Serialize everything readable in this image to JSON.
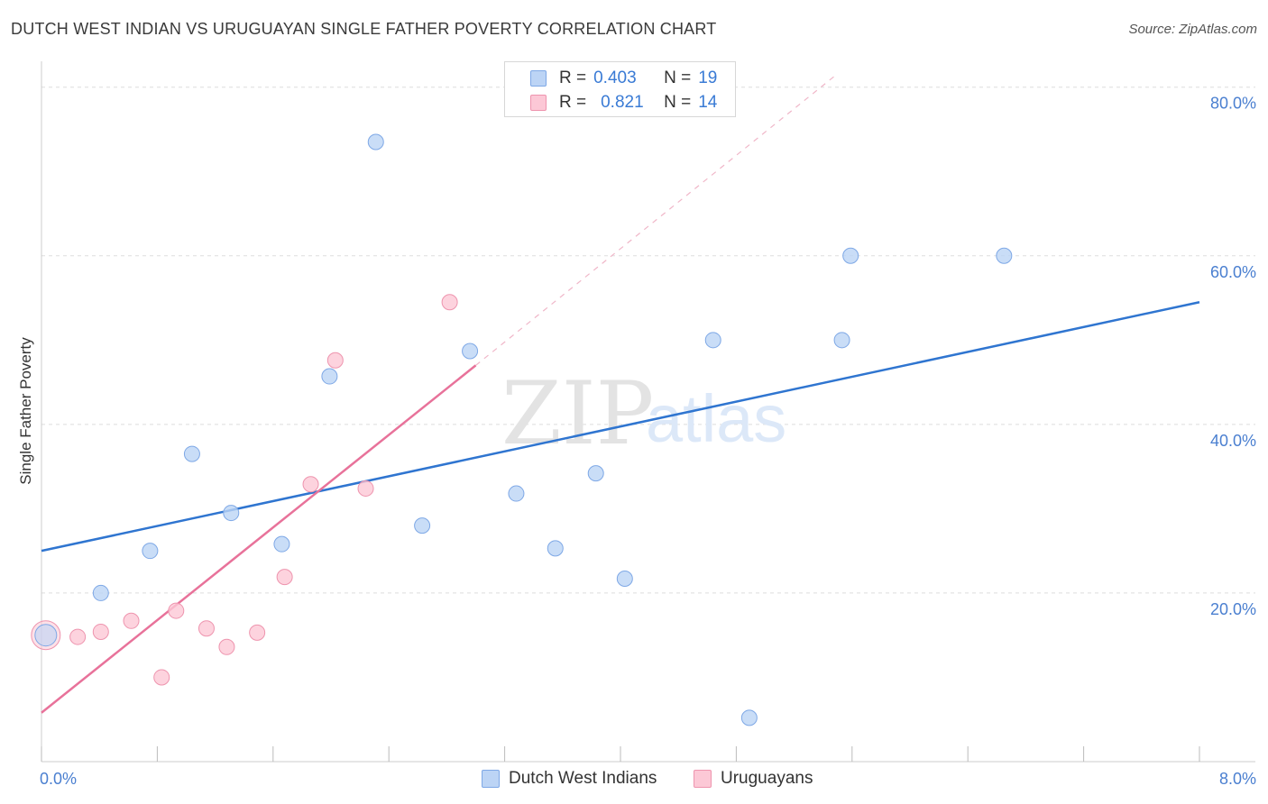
{
  "title": "DUTCH WEST INDIAN VS URUGUAYAN SINGLE FATHER POVERTY CORRELATION CHART",
  "source": "Source: ZipAtlas.com",
  "watermark": {
    "zip": "ZIP",
    "atlas": "atlas"
  },
  "legend": {
    "r_label": "R =",
    "n_label": "N =",
    "rows": [
      {
        "r": "0.403",
        "n": "19"
      },
      {
        "r": "0.821",
        "n": "14"
      }
    ]
  },
  "colors": {
    "blue_fill": "#bcd4f5",
    "blue_stroke": "#7ea8e6",
    "blue_line": "#2f75d0",
    "pink_fill": "#fcc8d6",
    "pink_stroke": "#ee94ae",
    "pink_line": "#e8729a",
    "grid": "#dddddd",
    "axis_text": "#4a7fd0"
  },
  "chart_data": {
    "type": "scatter",
    "title": "DUTCH WEST INDIAN VS URUGUAYAN SINGLE FATHER POVERTY CORRELATION CHART",
    "xlabel": "",
    "ylabel": "Single Father Poverty",
    "xlim": [
      0,
      8
    ],
    "ylim": [
      0,
      82
    ],
    "x_tick_labels": [
      "0.0%",
      "8.0%"
    ],
    "y_ticks": [
      20,
      40,
      60,
      80
    ],
    "y_tick_labels": [
      "20.0%",
      "40.0%",
      "60.0%",
      "80.0%"
    ],
    "series": [
      {
        "name": "Dutch West Indians",
        "color": "#7ea8e6",
        "r": 0.403,
        "n": 19,
        "points": [
          {
            "x": 0.03,
            "y": 15.0,
            "big": true
          },
          {
            "x": 0.41,
            "y": 20.0
          },
          {
            "x": 0.75,
            "y": 25.0
          },
          {
            "x": 1.04,
            "y": 36.5
          },
          {
            "x": 1.31,
            "y": 29.5
          },
          {
            "x": 1.66,
            "y": 25.8
          },
          {
            "x": 1.99,
            "y": 45.7
          },
          {
            "x": 2.31,
            "y": 73.5
          },
          {
            "x": 2.63,
            "y": 28.0
          },
          {
            "x": 2.96,
            "y": 48.7
          },
          {
            "x": 3.28,
            "y": 31.8
          },
          {
            "x": 3.55,
            "y": 25.3
          },
          {
            "x": 3.83,
            "y": 34.2
          },
          {
            "x": 4.03,
            "y": 21.7
          },
          {
            "x": 4.64,
            "y": 50.0
          },
          {
            "x": 4.89,
            "y": 5.2
          },
          {
            "x": 5.53,
            "y": 50.0
          },
          {
            "x": 5.59,
            "y": 60.0
          },
          {
            "x": 6.65,
            "y": 60.0
          }
        ],
        "trend": {
          "x0": 0.0,
          "y0": 25.0,
          "x1": 8.0,
          "y1": 54.5
        }
      },
      {
        "name": "Uruguayans",
        "color": "#ee94ae",
        "r": 0.821,
        "n": 14,
        "points": [
          {
            "x": 0.03,
            "y": 15.0,
            "big": true
          },
          {
            "x": 0.25,
            "y": 14.8
          },
          {
            "x": 0.41,
            "y": 15.4
          },
          {
            "x": 0.62,
            "y": 16.7
          },
          {
            "x": 0.83,
            "y": 10.0
          },
          {
            "x": 0.93,
            "y": 17.9
          },
          {
            "x": 1.14,
            "y": 15.8
          },
          {
            "x": 1.28,
            "y": 13.6
          },
          {
            "x": 1.49,
            "y": 15.3
          },
          {
            "x": 1.68,
            "y": 21.9
          },
          {
            "x": 1.86,
            "y": 32.9
          },
          {
            "x": 2.03,
            "y": 47.6
          },
          {
            "x": 2.24,
            "y": 32.4
          },
          {
            "x": 2.82,
            "y": 54.5
          }
        ],
        "trend": {
          "x0": 0.0,
          "y0": 5.8,
          "x1": 3.0,
          "y1": 47.0
        },
        "trend_extension": {
          "x0": 3.0,
          "y0": 47.0,
          "x1": 5.5,
          "y1": 81.6
        }
      }
    ]
  },
  "bottom_legend": [
    {
      "label": "Dutch West Indians"
    },
    {
      "label": "Uruguayans"
    }
  ]
}
